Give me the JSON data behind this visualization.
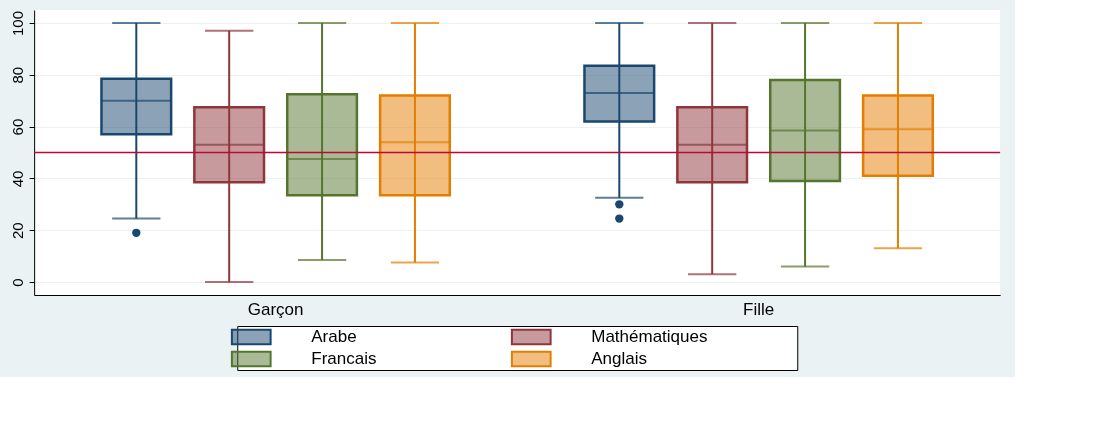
{
  "chart_data": {
    "type": "box",
    "categories": [
      "Garçon",
      "Fille"
    ],
    "series": [
      {
        "name": "Arabe",
        "color": "#1a476f",
        "boxes": [
          {
            "low": 24.5,
            "q1": 57,
            "median": 70,
            "q3": 78.5,
            "high": 100,
            "outliers": [
              19
            ]
          },
          {
            "low": 32.5,
            "q1": 62,
            "median": 73,
            "q3": 83.5,
            "high": 100,
            "outliers": [
              30,
              24.5
            ]
          }
        ]
      },
      {
        "name": "Mathématiques",
        "color": "#90353b",
        "boxes": [
          {
            "low": 0,
            "q1": 38.5,
            "median": 53,
            "q3": 67.5,
            "high": 97
          },
          {
            "low": 3,
            "q1": 38.5,
            "median": 53,
            "q3": 67.5,
            "high": 100
          }
        ]
      },
      {
        "name": "Francais",
        "color": "#55752f",
        "boxes": [
          {
            "low": 8.5,
            "q1": 33.5,
            "median": 47.5,
            "q3": 72.5,
            "high": 100
          },
          {
            "low": 6,
            "q1": 39,
            "median": 58.5,
            "q3": 78,
            "high": 100
          }
        ]
      },
      {
        "name": "Anglais",
        "color": "#e37e00",
        "boxes": [
          {
            "low": 7.5,
            "q1": 33.5,
            "median": 54,
            "q3": 72,
            "high": 100
          },
          {
            "low": 13,
            "q1": 41,
            "median": 59,
            "q3": 72,
            "high": 100
          }
        ]
      }
    ],
    "ylim": [
      -5,
      105
    ],
    "yticks": [
      0,
      20,
      40,
      60,
      80,
      100
    ],
    "ref_lines": [
      {
        "axis": "y",
        "value": 50,
        "color": "#c10534"
      }
    ],
    "grid": "y",
    "legend": "bottom"
  }
}
